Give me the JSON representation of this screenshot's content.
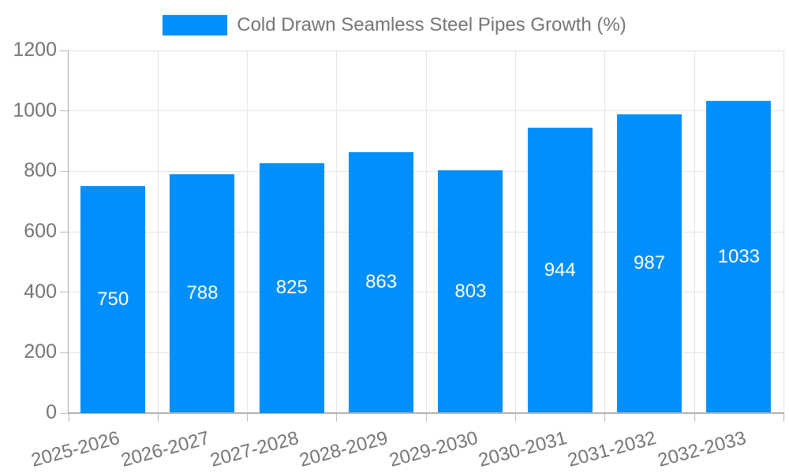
{
  "legend": {
    "label": "Cold Drawn Seamless Steel Pipes Growth (%)"
  },
  "chart_data": {
    "type": "bar",
    "title": "",
    "xlabel": "",
    "ylabel": "",
    "categories": [
      "2025-2026",
      "2026-2027",
      "2027-2028",
      "2028-2029",
      "2029-2030",
      "2030-2031",
      "2031-2032",
      "2032-2033"
    ],
    "series": [
      {
        "name": "Cold Drawn Seamless Steel Pipes Growth (%)",
        "values": [
          750,
          788,
          825,
          863,
          803,
          944,
          987,
          1033
        ]
      }
    ],
    "bar_labels": [
      "750",
      "788",
      "825",
      "863",
      "803",
      "944",
      "987",
      "1033"
    ],
    "ylim": [
      0,
      1200
    ],
    "yticks": [
      0,
      200,
      400,
      600,
      800,
      1000,
      1200
    ],
    "grid": true,
    "legend_position": "top-center",
    "colors": {
      "bar": "#008FFB",
      "bar_label": "#FFFFFF",
      "axis_text": "#757575",
      "grid_line": "#E4E4E4",
      "axis_line": "#AAAAAA",
      "background": "#FFFFFF"
    }
  }
}
